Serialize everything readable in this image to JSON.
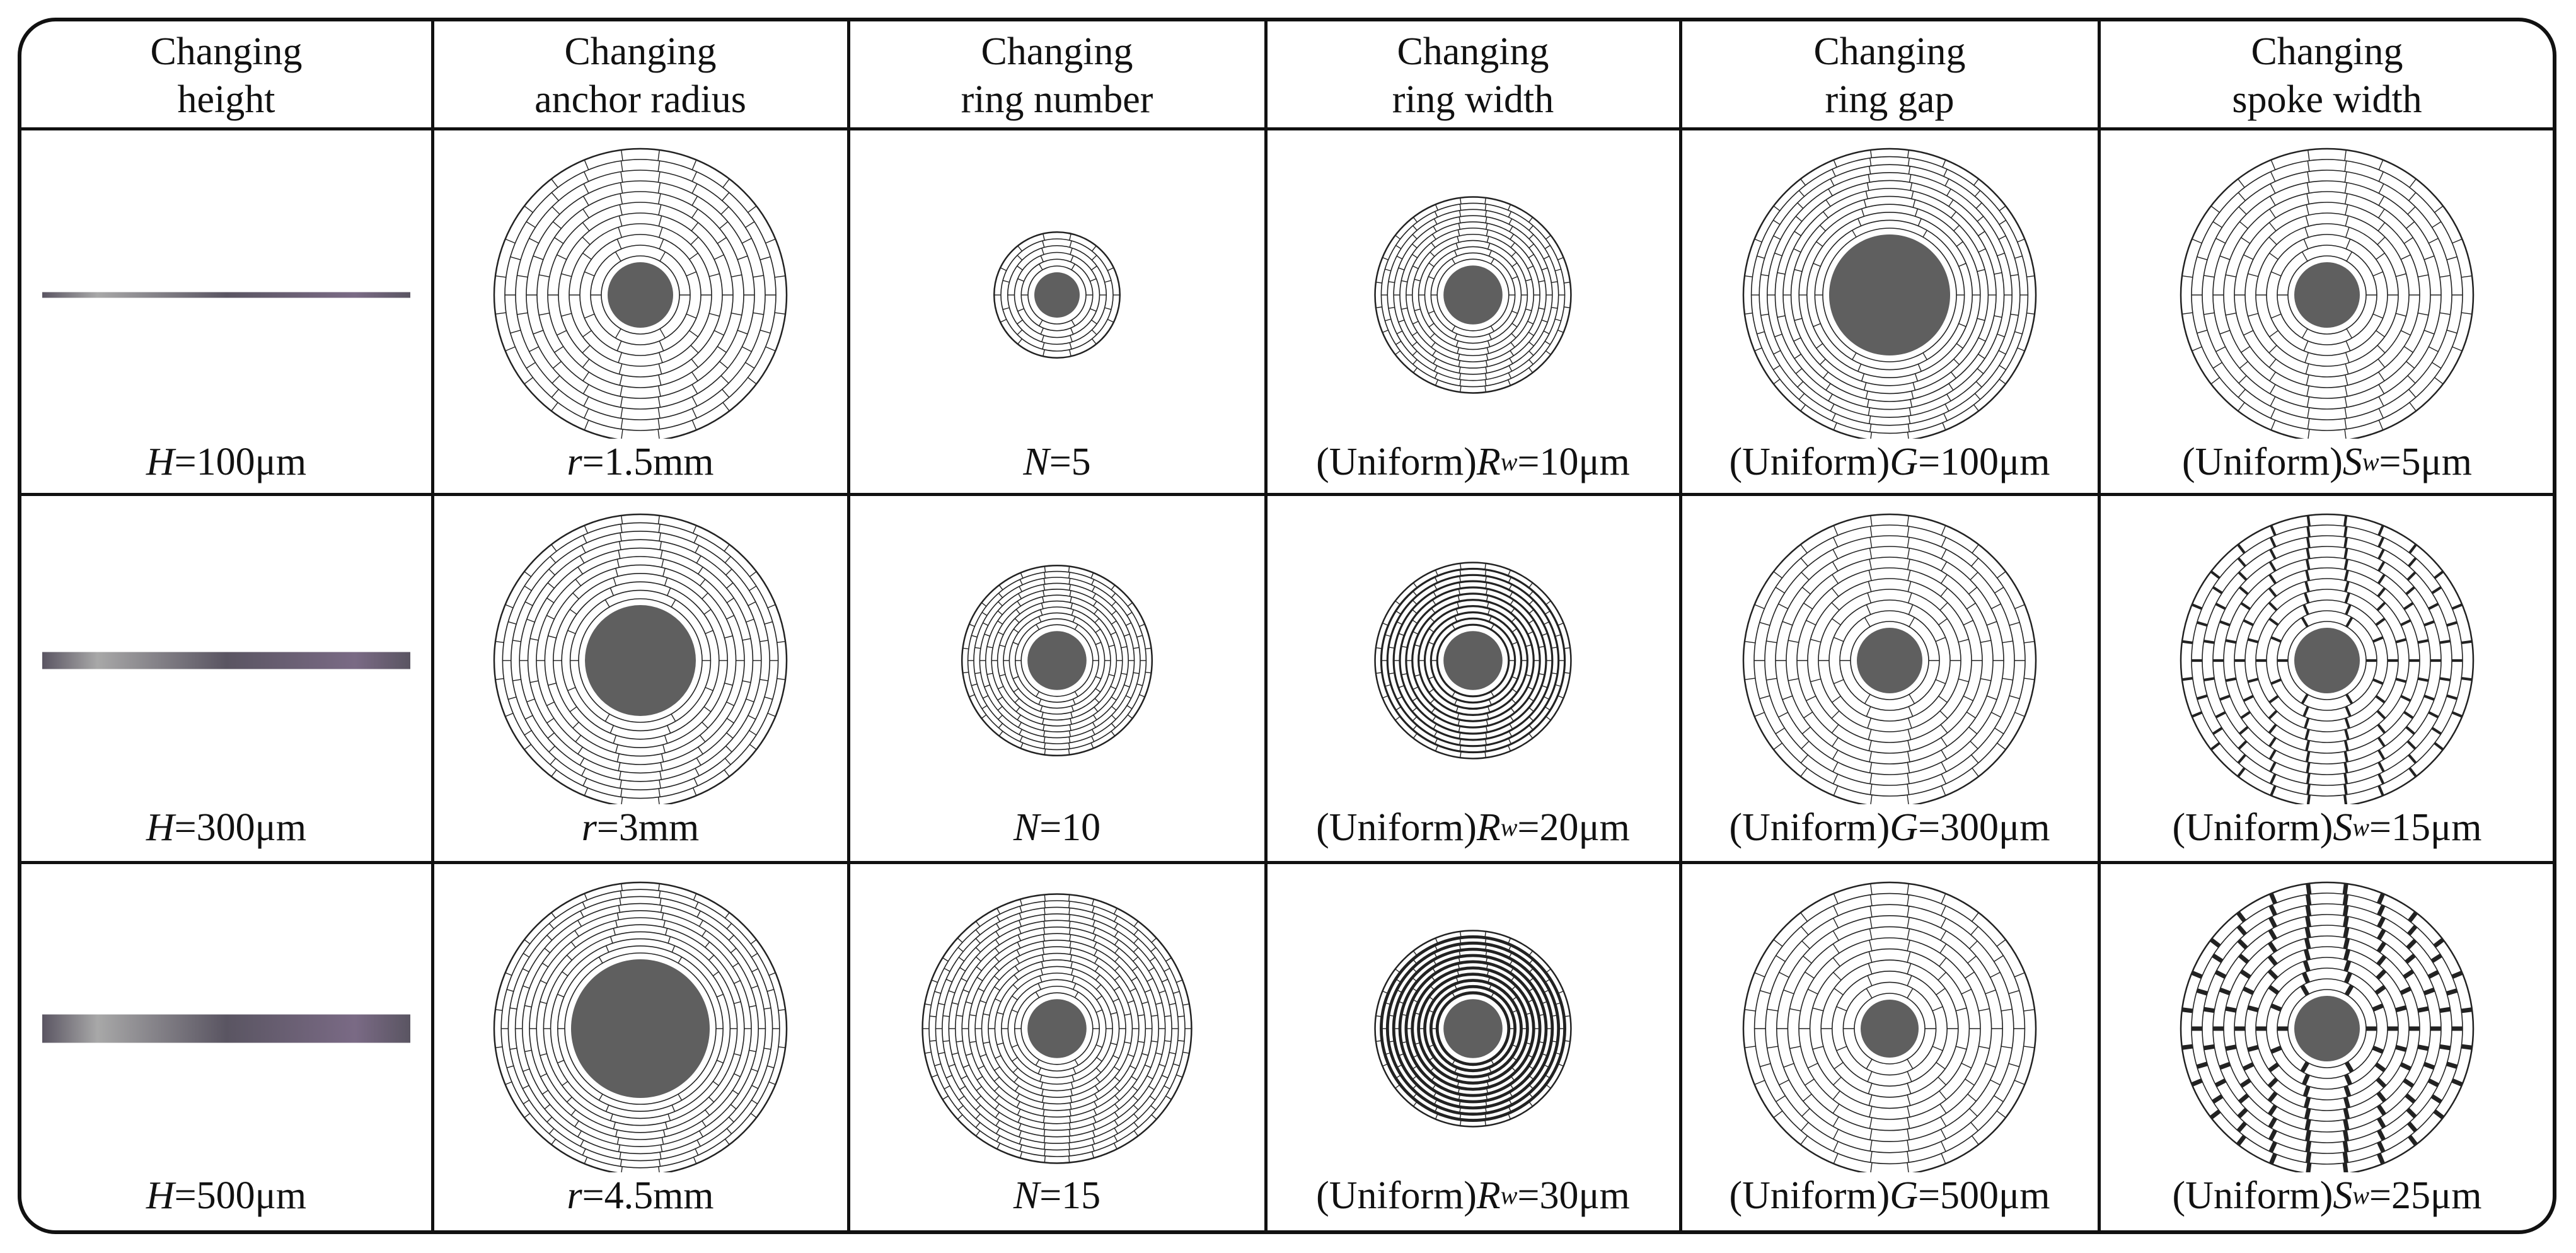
{
  "columns": [
    {
      "header": [
        "Changing",
        "height"
      ],
      "kind": "bar",
      "rows": [
        {
          "prefix": "",
          "symbol": "H",
          "sub": "",
          "eq": " = ",
          "value": "100μm"
        },
        {
          "prefix": "",
          "symbol": "H",
          "sub": "",
          "eq": " = ",
          "value": "300μm"
        },
        {
          "prefix": "",
          "symbol": "H",
          "sub": "",
          "eq": " = ",
          "value": "500μm"
        }
      ],
      "bar_thickness": [
        1,
        3,
        5
      ]
    },
    {
      "header": [
        "Changing",
        "anchor radius"
      ],
      "kind": "spiral",
      "rows": [
        {
          "prefix": "",
          "symbol": "r",
          "sub": "",
          "eq": " = ",
          "value": "1.5mm"
        },
        {
          "prefix": "",
          "symbol": "r",
          "sub": "",
          "eq": " = ",
          "value": "3mm"
        },
        {
          "prefix": "",
          "symbol": "r",
          "sub": "",
          "eq": " = ",
          "value": "4.5mm"
        }
      ],
      "anchor_radius_mm": [
        1.5,
        3,
        4.5
      ],
      "rings": [
        10,
        10,
        10
      ],
      "spokes": [
        1,
        1,
        1
      ],
      "ring_gap": [
        1,
        1,
        1
      ],
      "outer": [
        1,
        1,
        1
      ]
    },
    {
      "header": [
        "Changing",
        "ring number"
      ],
      "kind": "spiral",
      "rows": [
        {
          "prefix": "",
          "symbol": "N",
          "sub": "",
          "eq": " = ",
          "value": "5"
        },
        {
          "prefix": "",
          "symbol": "N",
          "sub": "",
          "eq": " = ",
          "value": "10"
        },
        {
          "prefix": "",
          "symbol": "N",
          "sub": "",
          "eq": " = ",
          "value": "15"
        }
      ],
      "anchor_radius_mm": [
        1.5,
        1.5,
        1.5
      ],
      "rings": [
        5,
        10,
        15
      ],
      "spokes": [
        1,
        1,
        1
      ],
      "ring_gap": [
        1,
        1,
        1
      ],
      "outer": [
        0.43,
        0.65,
        0.92
      ]
    },
    {
      "header": [
        "Changing",
        "ring width"
      ],
      "kind": "spiral",
      "rows": [
        {
          "prefix": "(Uniform) ",
          "symbol": "R",
          "sub": "w",
          "eq": " = ",
          "value": "10μm"
        },
        {
          "prefix": "(Uniform) ",
          "symbol": "R",
          "sub": "w",
          "eq": " = ",
          "value": "20μm"
        },
        {
          "prefix": "(Uniform) ",
          "symbol": "R",
          "sub": "w",
          "eq": " = ",
          "value": "30μm"
        }
      ],
      "anchor_radius_mm": [
        1.5,
        1.5,
        1.5
      ],
      "rings": [
        10,
        10,
        10
      ],
      "spokes": [
        1,
        1,
        1
      ],
      "ring_gap": [
        1,
        1,
        1
      ],
      "outer": [
        0.67,
        0.67,
        0.67
      ],
      "line_weight": [
        1,
        2,
        3
      ]
    },
    {
      "header": [
        "Changing",
        "ring gap"
      ],
      "kind": "spiral",
      "rows": [
        {
          "prefix": "(Uniform) ",
          "symbol": "G",
          "sub": "",
          "eq": " = ",
          "value": "100μm"
        },
        {
          "prefix": "(Uniform) ",
          "symbol": "G",
          "sub": "",
          "eq": " = ",
          "value": "300μm"
        },
        {
          "prefix": "(Uniform) ",
          "symbol": "G",
          "sub": "",
          "eq": " = ",
          "value": "500μm"
        }
      ],
      "anchor_radius_mm": [
        1.5,
        1.5,
        1.5
      ],
      "rings": [
        10,
        10,
        10
      ],
      "spokes": [
        1,
        1,
        1
      ],
      "ring_gap": [
        100,
        300,
        500
      ],
      "outer": [
        1,
        1,
        1
      ]
    },
    {
      "header": [
        "Changing",
        "spoke width"
      ],
      "kind": "spiral",
      "rows": [
        {
          "prefix": "(Uniform) ",
          "symbol": "S",
          "sub": "w",
          "eq": " = ",
          "value": "5μm"
        },
        {
          "prefix": "(Uniform) ",
          "symbol": "S",
          "sub": "w",
          "eq": " = ",
          "value": "15μm"
        },
        {
          "prefix": "(Uniform) ",
          "symbol": "S",
          "sub": "w",
          "eq": " = ",
          "value": "25μm"
        }
      ],
      "anchor_radius_mm": [
        1.5,
        1.5,
        1.5
      ],
      "rings": [
        10,
        10,
        10
      ],
      "spokes": [
        1,
        3,
        5
      ],
      "ring_gap": [
        1,
        1,
        1
      ],
      "outer": [
        1,
        1,
        1
      ]
    }
  ],
  "colors": {
    "line": "#222222",
    "anchor": "#5f5f5f",
    "bar_dark": "#5a5562",
    "bar_light": "#a8a8a8",
    "bar_accent": "#7a6a85",
    "text": "#111111"
  }
}
